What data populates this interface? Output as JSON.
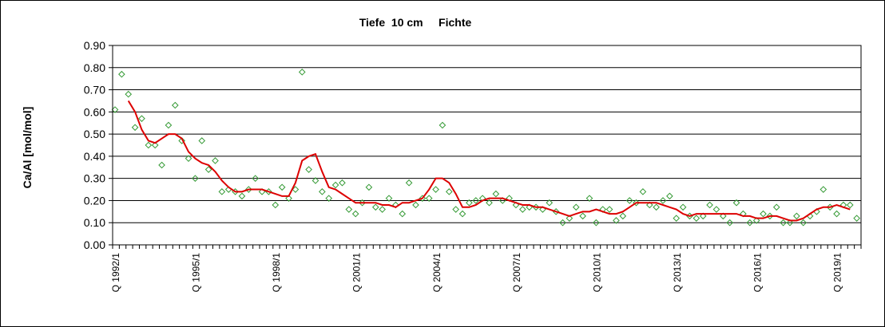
{
  "chart_data": {
    "type": "line",
    "title": "Tiefe  10 cm     Fichte",
    "ylabel": "Ca/Al [mol/mol]",
    "xlabel": "",
    "ylim": [
      0,
      0.9
    ],
    "yticks": [
      "0.00",
      "0.10",
      "0.20",
      "0.30",
      "0.40",
      "0.50",
      "0.60",
      "0.70",
      "0.80",
      "0.90"
    ],
    "x_start": "1992-Q1",
    "x_step": "quarter",
    "xticks": [
      {
        "label": "Q 1992/1",
        "index": 0
      },
      {
        "label": "Q 1995/1",
        "index": 12
      },
      {
        "label": "Q 1998/1",
        "index": 24
      },
      {
        "label": "Q 2001/1",
        "index": 36
      },
      {
        "label": "Q 2004/1",
        "index": 48
      },
      {
        "label": "Q 2007/1",
        "index": 60
      },
      {
        "label": "Q 2010/1",
        "index": 72
      },
      {
        "label": "Q 2013/1",
        "index": 84
      },
      {
        "label": "Q 2016/1",
        "index": 96
      },
      {
        "label": "Q 2019/1",
        "index": 108
      }
    ],
    "grid": true,
    "colors": {
      "points": "#339933",
      "line": "#dd0000",
      "grid": "#000000",
      "plot_bg": "#ffffff"
    },
    "series": [
      {
        "type": "scatter",
        "values": [
          0.61,
          0.77,
          0.68,
          0.53,
          0.57,
          0.45,
          0.45,
          0.36,
          0.54,
          0.63,
          0.47,
          0.39,
          0.3,
          0.47,
          0.34,
          0.38,
          0.24,
          0.25,
          0.24,
          0.22,
          0.25,
          0.3,
          0.24,
          0.24,
          0.18,
          0.26,
          0.21,
          0.25,
          0.78,
          0.34,
          0.29,
          0.24,
          0.21,
          0.27,
          0.28,
          0.16,
          0.14,
          0.19,
          0.26,
          0.17,
          0.16,
          0.21,
          0.18,
          0.14,
          0.28,
          0.18,
          0.21,
          0.21,
          0.25,
          0.54,
          0.24,
          0.16,
          0.14,
          0.19,
          0.2,
          0.21,
          0.19,
          0.23,
          0.2,
          0.21,
          0.18,
          0.16,
          0.17,
          0.17,
          0.16,
          0.19,
          0.15,
          0.1,
          0.12,
          0.17,
          0.13,
          0.21,
          0.1,
          0.16,
          0.16,
          0.11,
          0.13,
          0.2,
          0.19,
          0.24,
          0.18,
          0.17,
          0.2,
          0.22,
          0.12,
          0.17,
          0.13,
          0.12,
          0.13,
          0.18,
          0.16,
          0.13,
          0.1,
          0.19,
          0.14,
          0.1,
          0.11,
          0.14,
          0.13,
          0.17,
          0.1,
          0.1,
          0.13,
          0.1,
          0.13,
          0.15,
          0.25,
          0.17,
          0.14,
          0.18,
          0.18,
          0.12
        ]
      },
      {
        "type": "line",
        "values": [
          null,
          null,
          0.65,
          0.6,
          0.52,
          0.47,
          0.46,
          0.48,
          0.5,
          0.5,
          0.48,
          0.42,
          0.39,
          0.37,
          0.36,
          0.33,
          0.29,
          0.26,
          0.24,
          0.24,
          0.25,
          0.25,
          0.25,
          0.24,
          0.23,
          0.22,
          0.22,
          0.28,
          0.38,
          0.4,
          0.41,
          0.33,
          0.26,
          0.25,
          0.23,
          0.21,
          0.19,
          0.19,
          0.19,
          0.19,
          0.18,
          0.18,
          0.17,
          0.19,
          0.19,
          0.2,
          0.21,
          0.25,
          0.3,
          0.3,
          0.28,
          0.23,
          0.17,
          0.17,
          0.18,
          0.2,
          0.21,
          0.21,
          0.21,
          0.2,
          0.19,
          0.18,
          0.18,
          0.17,
          0.17,
          0.16,
          0.15,
          0.14,
          0.13,
          0.14,
          0.15,
          0.15,
          0.16,
          0.15,
          0.14,
          0.14,
          0.15,
          0.17,
          0.19,
          0.19,
          0.19,
          0.19,
          0.18,
          0.17,
          0.16,
          0.14,
          0.13,
          0.14,
          0.14,
          0.14,
          0.14,
          0.14,
          0.14,
          0.14,
          0.13,
          0.13,
          0.12,
          0.12,
          0.13,
          0.13,
          0.12,
          0.11,
          0.11,
          0.12,
          0.14,
          0.16,
          0.17,
          0.17,
          0.18,
          0.17,
          0.16,
          null
        ]
      }
    ]
  }
}
